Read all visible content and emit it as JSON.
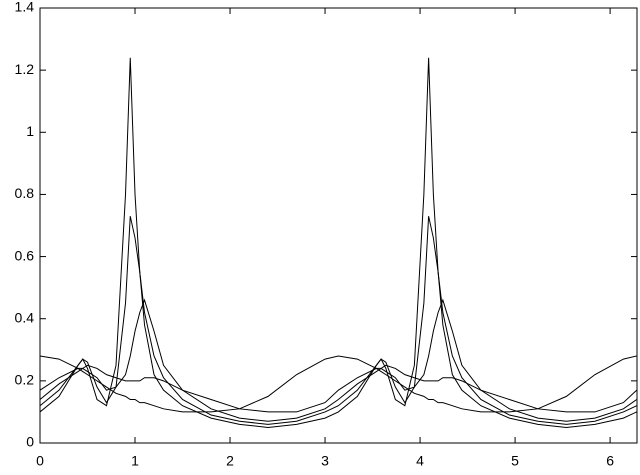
{
  "chart_data": {
    "type": "line",
    "x": [
      0,
      0.2,
      0.4,
      0.45,
      0.5,
      0.6,
      0.7,
      0.8,
      0.9,
      0.95,
      1.0,
      1.05,
      1.1,
      1.2,
      1.3,
      1.5,
      1.8,
      2.1,
      2.4,
      2.7,
      3.0,
      3.14,
      3.34,
      3.54,
      3.59,
      3.64,
      3.74,
      3.84,
      3.94,
      4.04,
      4.09,
      4.14,
      4.19,
      4.24,
      4.34,
      4.44,
      4.64,
      4.94,
      5.24,
      5.54,
      5.84,
      6.14,
      6.28
    ],
    "series": [
      {
        "color": "#000000",
        "values": [
          0.28,
          0.27,
          0.24,
          0.23,
          0.22,
          0.2,
          0.18,
          0.16,
          0.15,
          0.14,
          0.14,
          0.13,
          0.13,
          0.12,
          0.11,
          0.1,
          0.1,
          0.11,
          0.15,
          0.22,
          0.27,
          0.28,
          0.27,
          0.24,
          0.23,
          0.22,
          0.2,
          0.18,
          0.16,
          0.15,
          0.14,
          0.14,
          0.13,
          0.13,
          0.12,
          0.11,
          0.1,
          0.1,
          0.11,
          0.15,
          0.22,
          0.27,
          0.28
        ]
      },
      {
        "color": "#000000",
        "values": [
          0.1,
          0.15,
          0.25,
          0.27,
          0.24,
          0.14,
          0.12,
          0.25,
          0.8,
          1.24,
          0.8,
          0.55,
          0.38,
          0.22,
          0.17,
          0.12,
          0.08,
          0.06,
          0.05,
          0.06,
          0.08,
          0.1,
          0.15,
          0.25,
          0.27,
          0.24,
          0.14,
          0.12,
          0.25,
          0.8,
          1.24,
          0.8,
          0.55,
          0.38,
          0.22,
          0.17,
          0.12,
          0.08,
          0.06,
          0.05,
          0.06,
          0.08,
          0.1
        ]
      },
      {
        "color": "#000000",
        "values": [
          0.12,
          0.17,
          0.25,
          0.27,
          0.26,
          0.18,
          0.13,
          0.18,
          0.45,
          0.73,
          0.66,
          0.55,
          0.42,
          0.28,
          0.21,
          0.14,
          0.09,
          0.07,
          0.06,
          0.07,
          0.1,
          0.12,
          0.17,
          0.25,
          0.27,
          0.26,
          0.18,
          0.13,
          0.18,
          0.45,
          0.73,
          0.66,
          0.55,
          0.42,
          0.28,
          0.21,
          0.14,
          0.09,
          0.07,
          0.06,
          0.07,
          0.1,
          0.12
        ]
      },
      {
        "color": "#000000",
        "values": [
          0.14,
          0.19,
          0.23,
          0.24,
          0.23,
          0.21,
          0.17,
          0.18,
          0.22,
          0.28,
          0.36,
          0.42,
          0.46,
          0.36,
          0.25,
          0.17,
          0.11,
          0.08,
          0.07,
          0.08,
          0.11,
          0.14,
          0.19,
          0.23,
          0.24,
          0.23,
          0.21,
          0.17,
          0.18,
          0.22,
          0.28,
          0.36,
          0.42,
          0.46,
          0.36,
          0.25,
          0.17,
          0.11,
          0.08,
          0.07,
          0.08,
          0.11,
          0.14
        ]
      },
      {
        "color": "#000000",
        "values": [
          0.17,
          0.21,
          0.24,
          0.24,
          0.25,
          0.24,
          0.22,
          0.21,
          0.2,
          0.2,
          0.2,
          0.2,
          0.21,
          0.21,
          0.2,
          0.17,
          0.14,
          0.11,
          0.1,
          0.1,
          0.13,
          0.17,
          0.21,
          0.24,
          0.24,
          0.25,
          0.24,
          0.22,
          0.21,
          0.2,
          0.2,
          0.2,
          0.2,
          0.21,
          0.21,
          0.2,
          0.17,
          0.14,
          0.11,
          0.1,
          0.1,
          0.13,
          0.17
        ]
      }
    ],
    "xlim": [
      0,
      6.2832
    ],
    "xticks": [
      0,
      1,
      2,
      3,
      4,
      5,
      6
    ],
    "ylim": [
      0,
      1.4
    ],
    "yticks": [
      0,
      0.2,
      0.4,
      0.6,
      0.8,
      1,
      1.2,
      1.4
    ]
  }
}
